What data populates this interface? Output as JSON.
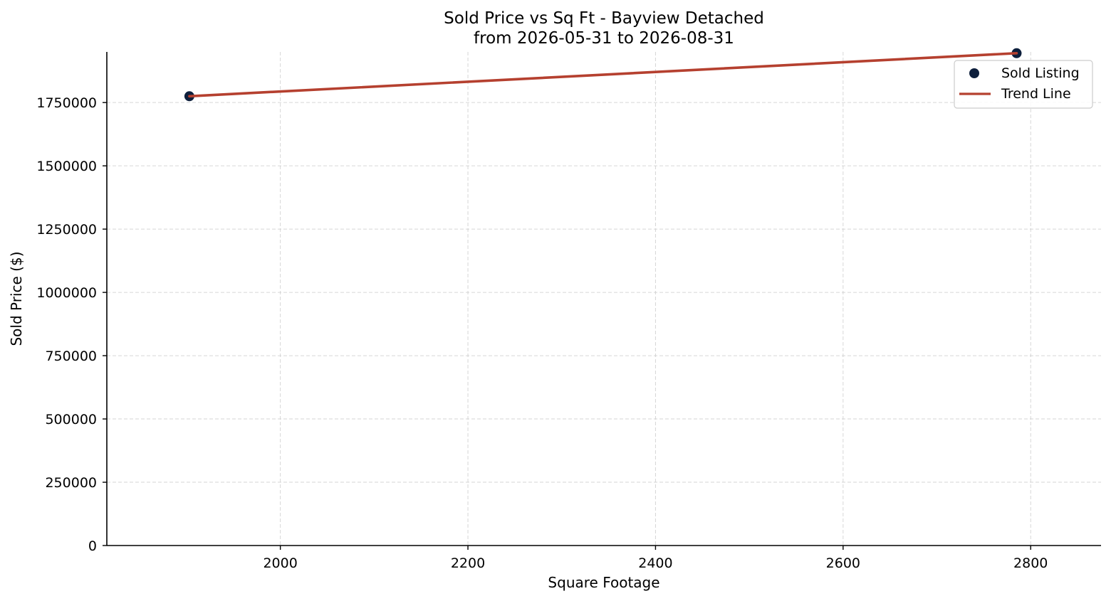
{
  "chart_data": {
    "type": "scatter",
    "title": "Sold Price vs Sq Ft - Bayview Detached",
    "subtitle": "from 2026-05-31 to 2026-08-31",
    "xlabel": "Square Footage",
    "ylabel": "Sold Price ($)",
    "xlim": [
      1815,
      2875
    ],
    "ylim": [
      0,
      1950000
    ],
    "xticks": [
      2000,
      2200,
      2400,
      2600,
      2800
    ],
    "xtick_labels": [
      "2000",
      "2200",
      "2400",
      "2600",
      "2800"
    ],
    "yticks": [
      0,
      250000,
      500000,
      750000,
      1000000,
      1250000,
      1500000,
      1750000
    ],
    "ytick_labels": [
      "0",
      "250000",
      "500000",
      "750000",
      "1000000",
      "1250000",
      "1500000",
      "1750000"
    ],
    "grid": true,
    "legend_position": "top-right",
    "series": [
      {
        "name": "Sold Listing",
        "kind": "scatter",
        "color": "#0d1f3c",
        "points": [
          {
            "x": 1903,
            "y": 1775000
          },
          {
            "x": 2785,
            "y": 1945000
          }
        ]
      },
      {
        "name": "Trend Line",
        "kind": "line",
        "color": "#b5402f",
        "points": [
          {
            "x": 1903,
            "y": 1775000
          },
          {
            "x": 2785,
            "y": 1945000
          }
        ]
      }
    ]
  }
}
